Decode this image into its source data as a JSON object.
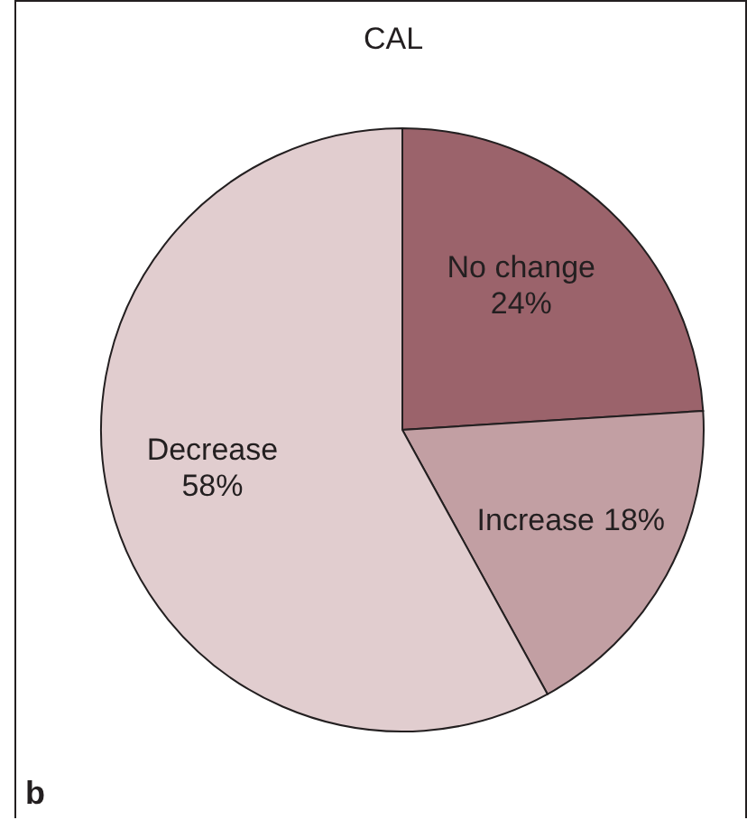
{
  "chart_data": {
    "type": "pie",
    "title": "CAL",
    "categories": [
      "No change",
      "Increase",
      "Decrease"
    ],
    "values": [
      24,
      18,
      58
    ],
    "value_labels": [
      "24%",
      "18%",
      "58%"
    ],
    "colors": [
      "#9b636b",
      "#c29fa3",
      "#e1cdcf"
    ],
    "annotations": [
      "b"
    ]
  }
}
